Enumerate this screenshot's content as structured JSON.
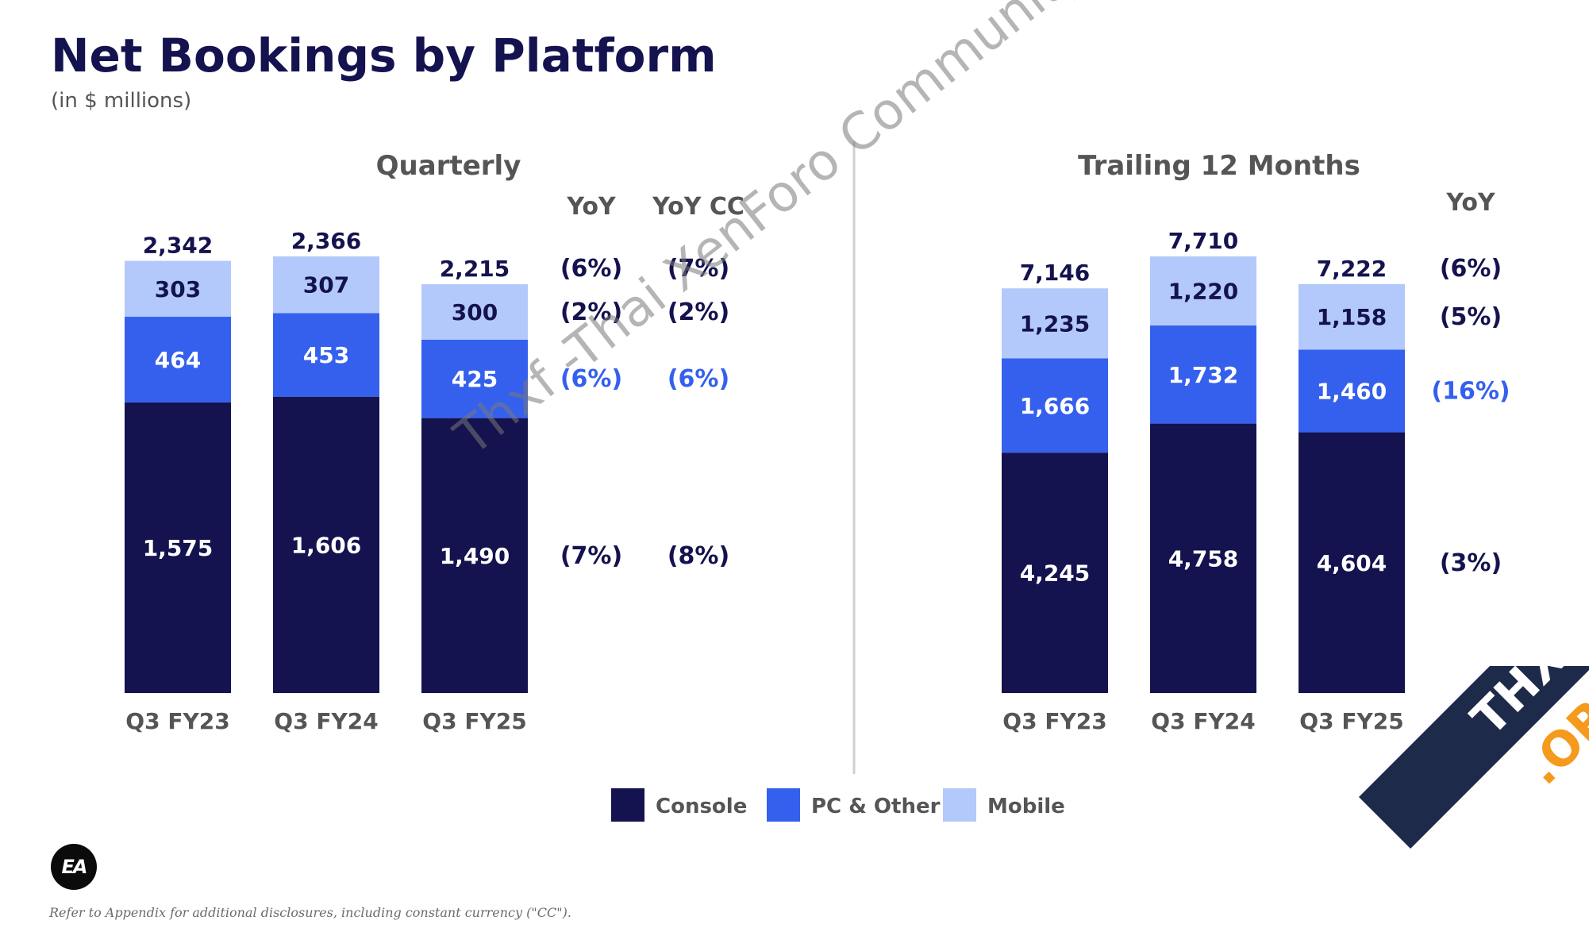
{
  "header": {
    "title": "Net Bookings by Platform",
    "subtitle": "(in $ millions)"
  },
  "colors": {
    "console": "#14134f",
    "pc_other": "#3560ee",
    "mobile": "#b3c9fb",
    "divider": "#cfcfcf"
  },
  "chart_data": [
    {
      "type": "bar",
      "stacked": true,
      "title": "Quarterly",
      "categories": [
        "Q3 FY23",
        "Q3 FY24",
        "Q3 FY25"
      ],
      "series": [
        {
          "name": "Console",
          "values": [
            1575,
            1606,
            1490
          ]
        },
        {
          "name": "PC & Other",
          "values": [
            464,
            453,
            425
          ]
        },
        {
          "name": "Mobile",
          "values": [
            303,
            307,
            300
          ]
        }
      ],
      "totals": [
        "2,342",
        "2,366",
        "2,215"
      ],
      "value_labels": {
        "Console": [
          "1,575",
          "1,606",
          "1,490"
        ],
        "PC & Other": [
          "464",
          "453",
          "425"
        ],
        "Mobile": [
          "303",
          "307",
          "300"
        ]
      },
      "yoy_headers": [
        "YoY",
        "YoY CC"
      ],
      "yoy": {
        "total": [
          "(6%)",
          "(7%)"
        ],
        "Console": [
          "(7%)",
          "(8%)"
        ],
        "PC & Other": [
          "(6%)",
          "(6%)"
        ],
        "Mobile": [
          "(2%)",
          "(2%)"
        ]
      }
    },
    {
      "type": "bar",
      "stacked": true,
      "title": "Trailing 12 Months",
      "categories": [
        "Q3 FY23",
        "Q3 FY24",
        "Q3 FY25"
      ],
      "series": [
        {
          "name": "Console",
          "values": [
            4245,
            4758,
            4604
          ]
        },
        {
          "name": "PC & Other",
          "values": [
            1666,
            1732,
            1460
          ]
        },
        {
          "name": "Mobile",
          "values": [
            1235,
            1220,
            1158
          ]
        }
      ],
      "totals": [
        "7,146",
        "7,710",
        "7,222"
      ],
      "value_labels": {
        "Console": [
          "4,245",
          "4,758",
          "4,604"
        ],
        "PC & Other": [
          "1,666",
          "1,732",
          "1,460"
        ],
        "Mobile": [
          "1,235",
          "1,220",
          "1,158"
        ]
      },
      "yoy_headers": [
        "YoY"
      ],
      "yoy": {
        "total": [
          "(6%)"
        ],
        "Console": [
          "(3%)"
        ],
        "PC & Other": [
          "(16%)"
        ],
        "Mobile": [
          "(5%)"
        ]
      }
    }
  ],
  "legend": {
    "position": "bottom",
    "items": [
      {
        "label": "Console",
        "color": "#14134f"
      },
      {
        "label": "PC & Other",
        "color": "#3560ee"
      },
      {
        "label": "Mobile",
        "color": "#b3c9fb"
      }
    ]
  },
  "logo": {
    "text": "EA"
  },
  "footer": {
    "disclaimer": "Refer to Appendix for additional disclosures, including constant currency (\"CC\")."
  },
  "watermark": {
    "text": "Thxf -Thai XenForo Community"
  },
  "badge": {
    "text_main": "THXF",
    "text_accent": ".ORG"
  }
}
